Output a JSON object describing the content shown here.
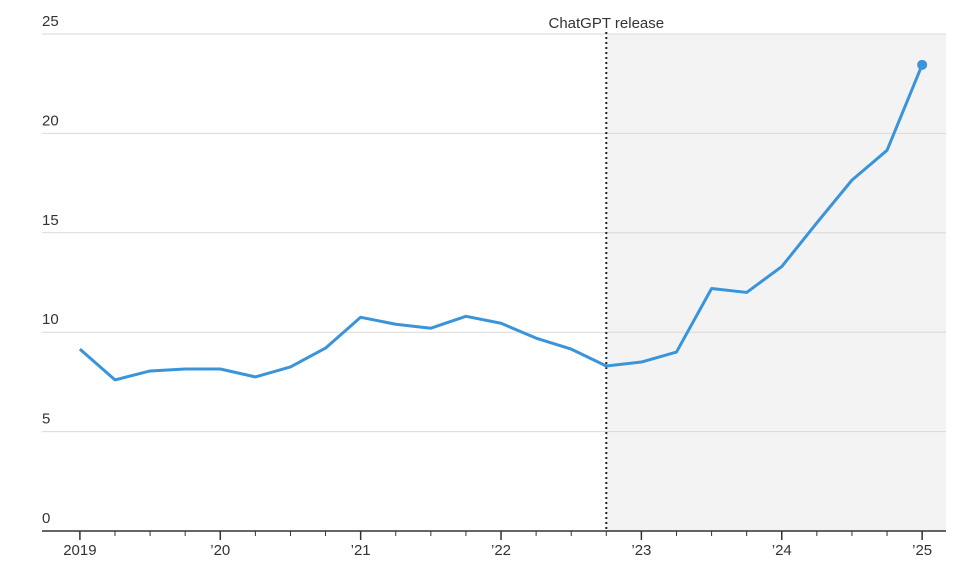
{
  "chart_data": {
    "type": "line",
    "x": [
      2019,
      2019.25,
      2019.5,
      2019.75,
      2020,
      2020.25,
      2020.5,
      2020.75,
      2021,
      2021.25,
      2021.5,
      2021.75,
      2022,
      2022.25,
      2022.5,
      2022.75,
      2023,
      2023.25,
      2023.5,
      2023.75,
      2024,
      2024.25,
      2024.5,
      2024.75,
      2025
    ],
    "series": [
      {
        "color": "#3a94d9",
        "values": [
          9.15,
          7.6,
          8.05,
          8.15,
          8.15,
          7.75,
          8.25,
          9.2,
          10.75,
          10.4,
          10.2,
          10.8,
          10.45,
          9.7,
          9.15,
          8.3,
          8.5,
          9.0,
          12.2,
          12.0,
          13.3,
          15.5,
          17.65,
          19.15,
          23.45
        ]
      }
    ],
    "xlim": [
      2018.73,
      2025.17
    ],
    "xticks": [
      {
        "value": 2019,
        "label": "2019"
      },
      {
        "value": 2020,
        "label": "’20"
      },
      {
        "value": 2021,
        "label": "’21"
      },
      {
        "value": 2022,
        "label": "’22"
      },
      {
        "value": 2023,
        "label": "’23"
      },
      {
        "value": 2024,
        "label": "’24"
      },
      {
        "value": 2025,
        "label": "’25"
      }
    ],
    "ylim": [
      0,
      25
    ],
    "yticks": [
      0,
      5,
      10,
      15,
      20,
      25
    ],
    "grid": true,
    "annotations": [
      {
        "text": "ChatGPT release",
        "x": 2022.75,
        "shade_color": "#f3f3f3"
      }
    ]
  }
}
